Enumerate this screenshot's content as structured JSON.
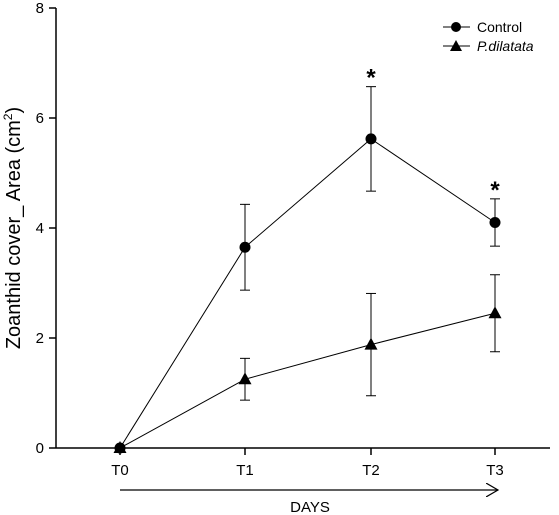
{
  "chart_data": {
    "type": "line",
    "categories": [
      "T0",
      "T1",
      "T2",
      "T3"
    ],
    "xlabel": "DAYS",
    "ylabel_main": "Zoanthid cover_ Area (cm",
    "ylabel_sup": "2",
    "ylabel_close": ")",
    "ylim": [
      0,
      8
    ],
    "yticks": [
      0,
      2,
      4,
      6,
      8
    ],
    "legend_position": "top-right",
    "series": [
      {
        "name": "Control",
        "marker": "circle",
        "values": [
          0,
          3.65,
          5.62,
          4.1
        ],
        "err_low": [
          0,
          0.78,
          0.95,
          0.43
        ],
        "err_high": [
          0,
          0.78,
          0.95,
          0.43
        ]
      },
      {
        "name": "P.dilatata",
        "marker": "triangle",
        "values": [
          0,
          1.25,
          1.88,
          2.45
        ],
        "err_low": [
          0,
          0.38,
          0.93,
          0.7
        ],
        "err_high": [
          0,
          0.38,
          0.93,
          0.7
        ]
      }
    ],
    "significance_label": "*",
    "significance_categories": [
      "T2",
      "T3"
    ],
    "colors": {
      "line": "#000000",
      "marker": "#000000"
    }
  }
}
